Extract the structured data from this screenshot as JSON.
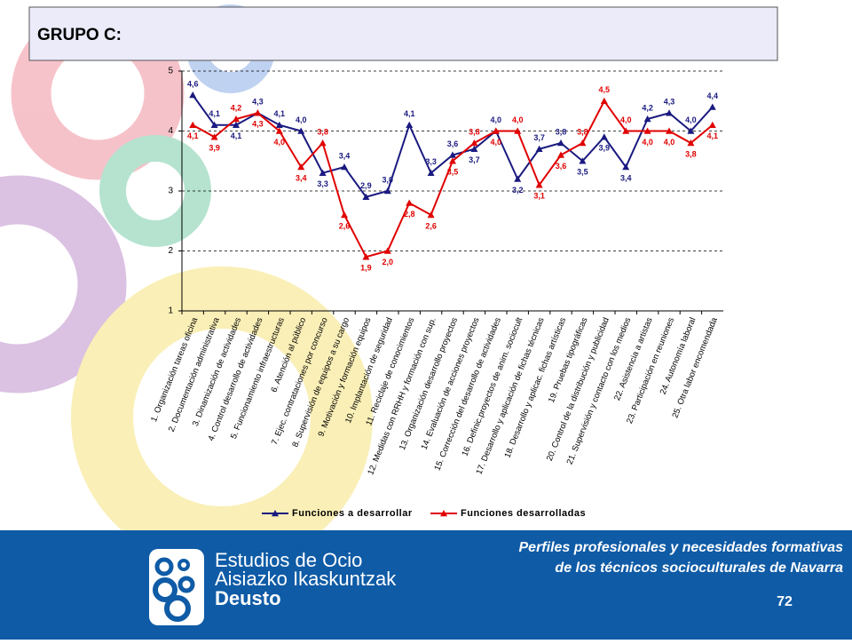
{
  "chart_data": {
    "type": "line",
    "title": "GRUPO C:",
    "categories": [
      "1. Organización tareas oficina",
      "2. Documentación administrativa",
      "3. Dinamización de actividades",
      "4. Control desarrollo de actividades",
      "5. Funcionamiento infraestructuras",
      "6. Atención al público",
      "7. Ejec. contrataciones por concurso",
      "8. Supervisión de equipos a su cargo",
      "9. Motivación y formación equipos",
      "10. Implantación de seguridad",
      "11. Reciclaje de conocimientos",
      "12. Medidas con RRHH y formación con sup.",
      "13. Organización desarrollo proyectos",
      "14. Evaluación de acciones proyectos",
      "15. Corrección del desarrollo de actividades",
      "16. Definic.proyectos de anim. sociocult",
      "17. Desarrollo y aplicación de fichas técnicas",
      "18. Desarrollo y aplicac. fichas artísticas",
      "19. Pruebas tipográficas",
      "20. Control de la distribución y publicidad",
      "21. Supervisión y contacto con los medios",
      "22. Asistencia a artistas",
      "23. Participación en reuniones",
      "24. Autonomía laboral",
      "25. Otra labor encomendada"
    ],
    "series": [
      {
        "name": "Funciones a desarrollar",
        "color": "#1a1a80",
        "values": [
          4.6,
          4.1,
          4.1,
          4.3,
          4.1,
          4.0,
          3.3,
          3.4,
          2.9,
          3.0,
          4.1,
          3.3,
          3.6,
          3.7,
          4.0,
          3.2,
          3.7,
          3.8,
          3.5,
          3.9,
          3.4,
          4.2,
          4.3,
          4.0,
          4.4
        ],
        "value_labels": [
          "4,6",
          "4,1",
          "4,1",
          "4,3",
          "4,1",
          "4,0",
          "3,3",
          "3,4",
          "2,9",
          "3,0",
          "4,1",
          "3,3",
          "3,6",
          "3,7",
          "4,0",
          "3,2",
          "3,7",
          "3,8",
          "3,5",
          "3,9",
          "3,4",
          "4,2",
          "4,3",
          "4,0",
          "4,4"
        ]
      },
      {
        "name": "Funciones desarrolladas",
        "color": "#e00000",
        "values": [
          4.1,
          3.9,
          4.2,
          4.3,
          4.0,
          3.4,
          3.8,
          2.6,
          1.9,
          2.0,
          2.8,
          2.6,
          3.5,
          3.8,
          4.0,
          4.0,
          3.1,
          3.6,
          3.8,
          4.5,
          4.0,
          4.0,
          4.0,
          3.8,
          4.1
        ],
        "value_labels": [
          "4,1",
          "3,9",
          "4,2",
          "4,3",
          "4,0",
          "3,4",
          "3,8",
          "2,6",
          "1,9",
          "2,0",
          "2,8",
          "2,6",
          "3,5",
          "3,8",
          "4,0",
          "4,0",
          "3,1",
          "3,6",
          "3,8",
          "4,5",
          "4,0",
          "4,0",
          "4,0",
          "3,8",
          "4,1"
        ]
      }
    ],
    "ylim": [
      1,
      5
    ],
    "yticks": [
      1,
      2,
      3,
      4,
      5
    ],
    "grid": true,
    "legend": "bottom"
  },
  "footer": {
    "logo": [
      "Estudios de Ocio",
      "Aisiazko Ikaskuntzak",
      "Deusto"
    ],
    "caption": [
      "Perfiles profesionales y necesidades formativas",
      "de los técnicos socioculturales de Navarra"
    ],
    "page": "72"
  }
}
